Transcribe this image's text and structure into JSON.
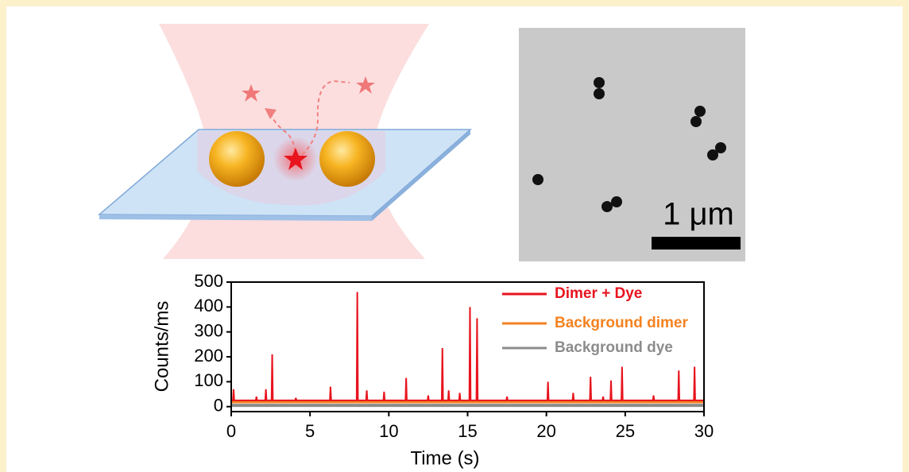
{
  "micrograph": {
    "scale_label": "1 μm"
  },
  "chart_data": {
    "type": "line",
    "x_label": "Time (s)",
    "y_label": "Counts/ms",
    "xlim": [
      0,
      30
    ],
    "xticks": [
      0,
      5,
      10,
      15,
      20,
      25,
      30
    ],
    "ylim": [
      -20,
      500
    ],
    "yticks": [
      0,
      100,
      200,
      300,
      400,
      500
    ],
    "legend": "upper right",
    "series": [
      {
        "name": "Dimer + Dye",
        "color": "#e8141e",
        "x": [
          0,
          0.11,
          0.15,
          0.19,
          1.56,
          1.6,
          1.64,
          2.16,
          2.2,
          2.24,
          2.56,
          2.6,
          2.64,
          4.06,
          4.1,
          4.14,
          6.26,
          6.3,
          6.34,
          7.96,
          8.0,
          8.04,
          8.56,
          8.6,
          8.64,
          9.66,
          9.7,
          9.74,
          11.06,
          11.1,
          11.14,
          12.46,
          12.5,
          12.54,
          13.36,
          13.4,
          13.44,
          13.76,
          13.8,
          13.84,
          14.46,
          14.5,
          14.54,
          15.11,
          15.15,
          15.19,
          15.56,
          15.6,
          15.64,
          17.46,
          17.5,
          17.54,
          20.06,
          20.1,
          20.14,
          21.66,
          21.7,
          21.74,
          22.76,
          22.8,
          22.84,
          23.56,
          23.6,
          23.64,
          24.06,
          24.1,
          24.14,
          24.76,
          24.8,
          24.84,
          26.76,
          26.8,
          26.84,
          28.36,
          28.4,
          28.44,
          29.36,
          29.4,
          29.44,
          30
        ],
        "values": [
          25,
          25,
          70,
          25,
          25,
          40,
          25,
          25,
          70,
          25,
          25,
          210,
          25,
          25,
          35,
          25,
          25,
          80,
          25,
          25,
          460,
          25,
          25,
          65,
          25,
          25,
          60,
          25,
          25,
          115,
          25,
          25,
          45,
          25,
          25,
          235,
          25,
          25,
          65,
          25,
          25,
          55,
          25,
          25,
          400,
          25,
          25,
          355,
          25,
          25,
          40,
          25,
          25,
          100,
          25,
          25,
          55,
          25,
          25,
          120,
          25,
          25,
          40,
          25,
          25,
          105,
          25,
          25,
          160,
          25,
          25,
          45,
          25,
          25,
          145,
          25,
          25,
          160,
          25,
          25
        ]
      },
      {
        "name": "Background dimer",
        "color": "#f58220",
        "x": [
          0,
          30
        ],
        "values": [
          20,
          20
        ]
      },
      {
        "name": "Background dye",
        "color": "#8c8c8c",
        "x": [
          0,
          30
        ],
        "values": [
          5,
          5
        ]
      }
    ]
  }
}
